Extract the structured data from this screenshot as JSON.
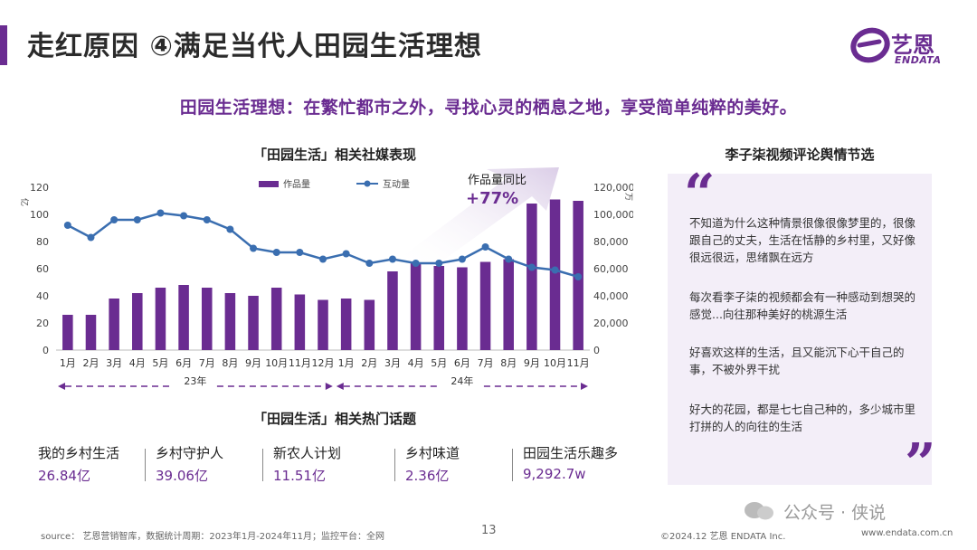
{
  "header": {
    "title": "走红原因 ④满足当代人田园生活理想",
    "logo_text": "艺恩",
    "logo_sub": "ENDATA",
    "subtitle": "田园生活理想：在繁忙都市之外，寻找心灵的栖息之地，享受简单纯粹的美好。"
  },
  "chart_data": {
    "type": "bar+line",
    "title": "「田园生活」相关社媒表现",
    "categories": [
      "1月",
      "2月",
      "3月",
      "4月",
      "5月",
      "6月",
      "7月",
      "8月",
      "9月",
      "10月",
      "11月",
      "12月",
      "1月",
      "2月",
      "3月",
      "4月",
      "5月",
      "6月",
      "7月",
      "8月",
      "9月",
      "10月",
      "11月"
    ],
    "year_labels": [
      "23年",
      "24年"
    ],
    "series": [
      {
        "name": "作品量",
        "type": "bar",
        "axis": "left",
        "color": "#6a2c91",
        "values": [
          26,
          26,
          38,
          42,
          46,
          48,
          46,
          42,
          40,
          46,
          41,
          37,
          38,
          37,
          58,
          64,
          62,
          61,
          65,
          67,
          108,
          111,
          110
        ]
      },
      {
        "name": "互动量",
        "type": "line",
        "axis": "right",
        "color": "#3a6eb0",
        "values": [
          92000,
          83000,
          96000,
          96000,
          101000,
          99000,
          96000,
          89000,
          75000,
          72000,
          72000,
          67000,
          71000,
          64000,
          67000,
          64000,
          64000,
          67000,
          76000,
          67000,
          61000,
          59000,
          54000
        ]
      }
    ],
    "left_axis": {
      "ticks": [
        "0",
        "20",
        "40",
        "60",
        "80",
        "100",
        "120"
      ],
      "ylim": [
        0,
        120
      ],
      "unit": "亿"
    },
    "right_axis": {
      "ticks": [
        "0",
        "20,000",
        "40,000",
        "60,000",
        "80,000",
        "100,000",
        "120,000"
      ],
      "ylim": [
        0,
        120000
      ],
      "unit": "万"
    },
    "legend_placement": "top",
    "annotation": {
      "label": "作品量同比",
      "value": "+77%"
    }
  },
  "topics": {
    "title": "「田园生活」相关热门话题",
    "items": [
      {
        "name": "我的乡村生活",
        "value": "26.84亿"
      },
      {
        "name": "乡村守护人",
        "value": "39.06亿"
      },
      {
        "name": "新农人计划",
        "value": "11.51亿"
      },
      {
        "name": "乡村味道",
        "value": "2.36亿"
      },
      {
        "name": "田园生活乐趣多",
        "value": "9,292.7w"
      }
    ]
  },
  "comments": {
    "title": "李子柒视频评论舆情节选",
    "open_quote": "“",
    "close_quote": "”",
    "items": [
      "不知道为什么这种情景很像很像梦里的，很像跟自己的丈夫，生活在恬静的乡村里，又好像很远很远，思绪飘在远方",
      "每次看李子柒的视频都会有一种感动到想哭的感觉...向往那种美好的桃源生活",
      "好喜欢这样的生活，且又能沉下心干自己的事，不被外界干扰",
      "好大的花园，都是七七自己种的，多少城市里打拼的人的向往的生活"
    ]
  },
  "footer": {
    "source": "source： 艺恩营销智库，数据统计周期：2023年1月-2024年11月；监控平台：全网",
    "page": "13",
    "copyright": "©2024.12 艺恩 ENDATA Inc.",
    "website": "www.endata.com.cn",
    "watermark": "公众号 · 侠说"
  }
}
